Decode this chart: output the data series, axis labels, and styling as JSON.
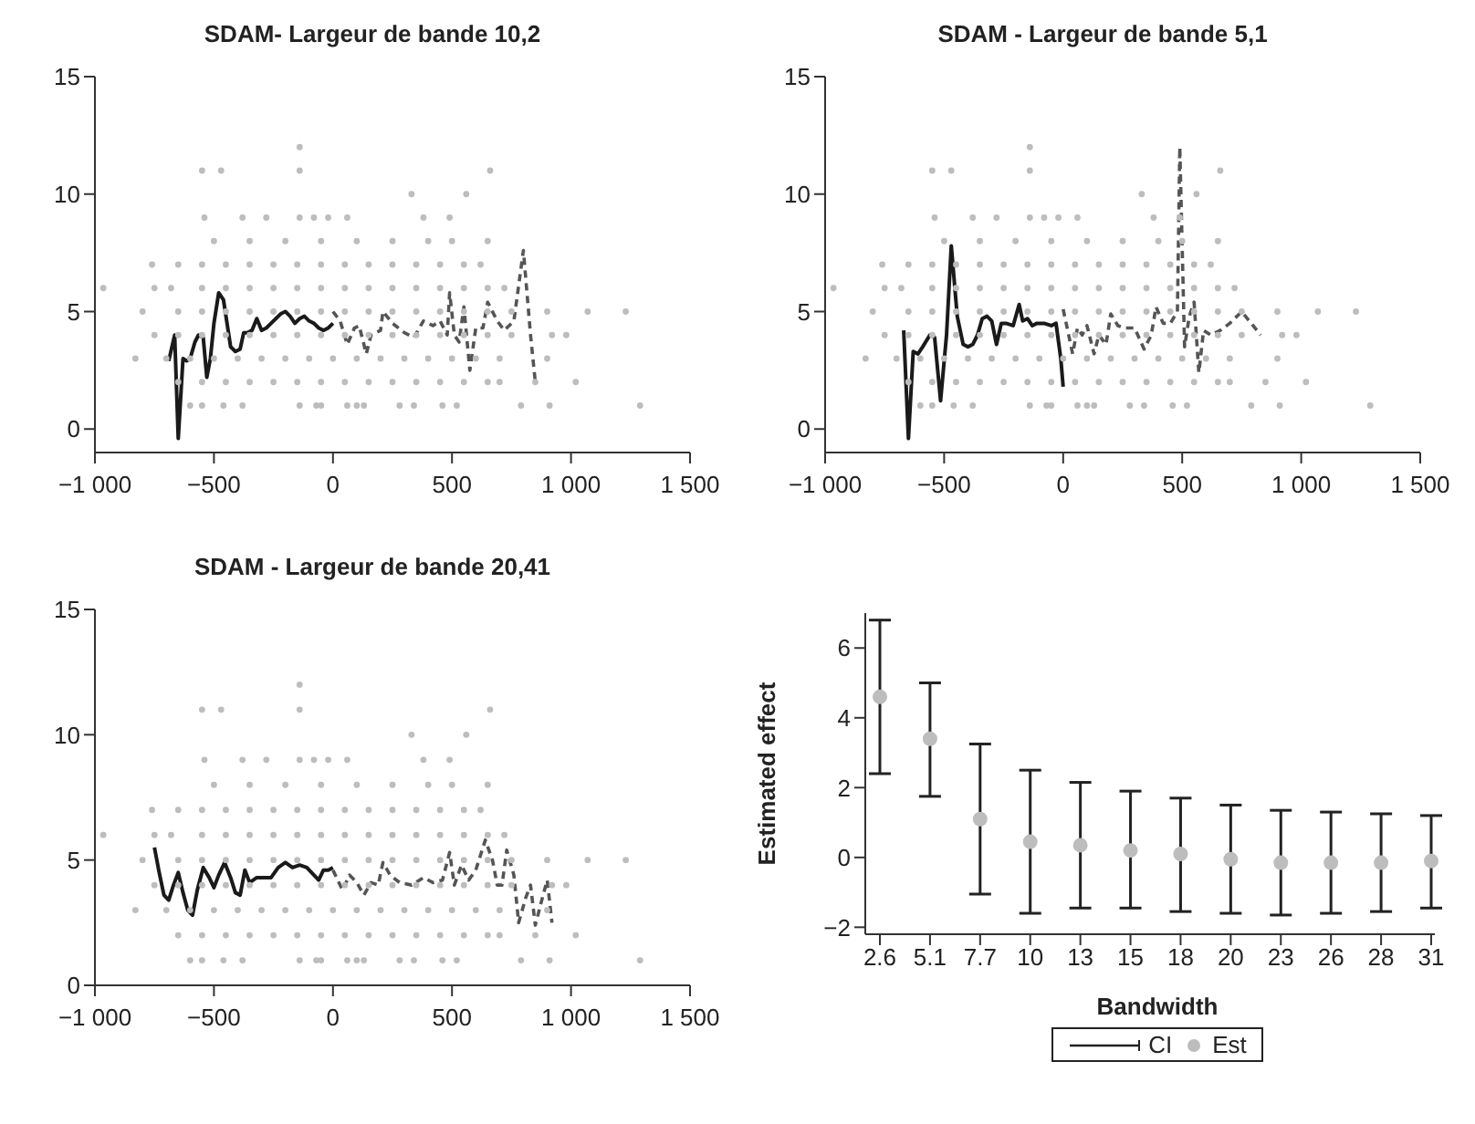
{
  "chart_data": [
    {
      "type": "scatter",
      "title": "SDAM- Largeur de bande 10,2",
      "xlim": [
        -1000,
        1500
      ],
      "xticks": [
        {
          "value": -1000,
          "label": "−1 000"
        },
        {
          "value": -500,
          "label": "−500"
        },
        {
          "value": 0,
          "label": "0"
        },
        {
          "value": 500,
          "label": "500"
        },
        {
          "value": 1000,
          "label": "1 000"
        },
        {
          "value": 1500,
          "label": "1 500"
        }
      ],
      "ylim": [
        -1,
        15
      ],
      "yticks": [
        0,
        5,
        10,
        15
      ],
      "grid": false,
      "legend": false,
      "series": [
        {
          "type": "scatter",
          "color": "#bdbdbd",
          "marker": "circle",
          "x": [
            -600,
            -550,
            -460,
            -380,
            -140,
            -70,
            -50,
            60,
            100,
            130,
            280,
            340,
            460,
            520,
            790,
            910,
            1290,
            -650,
            -550,
            -450,
            -350,
            -250,
            -150,
            -50,
            50,
            150,
            250,
            350,
            450,
            550,
            650,
            700,
            850,
            1020,
            -830,
            -700,
            -600,
            -500,
            -400,
            -300,
            -200,
            -100,
            0,
            100,
            200,
            300,
            400,
            500,
            600,
            700,
            900,
            -750,
            -650,
            -550,
            -450,
            -350,
            -250,
            -150,
            -50,
            50,
            150,
            250,
            350,
            450,
            550,
            650,
            750,
            920,
            980,
            -800,
            -650,
            -550,
            -450,
            -350,
            -250,
            -150,
            -50,
            50,
            150,
            250,
            350,
            450,
            550,
            650,
            750,
            900,
            1070,
            1230,
            -965,
            -750,
            -680,
            -550,
            -450,
            -350,
            -250,
            -150,
            -50,
            50,
            150,
            250,
            350,
            450,
            550,
            650,
            720,
            -760,
            -650,
            -550,
            -450,
            -350,
            -250,
            -150,
            -50,
            50,
            150,
            250,
            350,
            450,
            550,
            620,
            -500,
            -350,
            -200,
            -50,
            100,
            250,
            400,
            500,
            650,
            -540,
            -380,
            -280,
            -140,
            -80,
            -20,
            60,
            380,
            490,
            330,
            560,
            -550,
            -470,
            -140,
            660,
            -140
          ],
          "values": [
            1,
            1,
            1,
            1,
            1,
            1,
            1,
            1,
            1,
            1,
            1,
            1,
            1,
            1,
            1,
            1,
            1,
            2,
            2,
            2,
            2,
            2,
            2,
            2,
            2,
            2,
            2,
            2,
            2,
            2,
            2,
            2,
            2,
            2,
            3,
            3,
            3,
            3,
            3,
            3,
            3,
            3,
            3,
            3,
            3,
            3,
            3,
            3,
            3,
            3,
            3,
            4,
            4,
            4,
            4,
            4,
            4,
            4,
            4,
            4,
            4,
            4,
            4,
            4,
            4,
            4,
            4,
            4,
            4,
            5,
            5,
            5,
            5,
            5,
            5,
            5,
            5,
            5,
            5,
            5,
            5,
            5,
            5,
            5,
            5,
            5,
            5,
            5,
            6,
            6,
            6,
            6,
            6,
            6,
            6,
            6,
            6,
            6,
            6,
            6,
            6,
            6,
            6,
            6,
            6,
            7,
            7,
            7,
            7,
            7,
            7,
            7,
            7,
            7,
            7,
            7,
            7,
            7,
            7,
            7,
            8,
            8,
            8,
            8,
            8,
            8,
            8,
            8,
            8,
            9,
            9,
            9,
            9,
            9,
            9,
            9,
            9,
            9,
            10,
            10,
            11,
            11,
            11,
            11,
            12
          ]
        },
        {
          "type": "line",
          "color": "#1a1a1a",
          "line_style": "solid",
          "marker": "none",
          "x": [
            -690,
            -665,
            -650,
            -630,
            -615,
            -600,
            -580,
            -565,
            -545,
            -530,
            -515,
            -500,
            -480,
            -460,
            -445,
            -430,
            -410,
            -390,
            -375,
            -360,
            -340,
            -320,
            -300,
            -280,
            -260,
            -240,
            -220,
            -200,
            -180,
            -160,
            -140,
            -120,
            -100,
            -80,
            -60,
            -40,
            -20,
            0
          ],
          "values": [
            2.9,
            4.0,
            -0.4,
            3.0,
            2.9,
            3.0,
            3.7,
            4.0,
            3.9,
            2.2,
            3.0,
            4.5,
            5.8,
            5.5,
            4.5,
            3.5,
            3.3,
            3.4,
            4.1,
            4.1,
            4.2,
            4.7,
            4.2,
            4.3,
            4.5,
            4.7,
            4.9,
            5.0,
            4.8,
            4.5,
            4.7,
            4.8,
            4.6,
            4.5,
            4.3,
            4.2,
            4.3,
            4.5
          ]
        },
        {
          "type": "line",
          "color": "#555555",
          "line_style": "dashed",
          "marker": "none",
          "x": [
            0,
            30,
            60,
            90,
            110,
            140,
            160,
            200,
            210,
            250,
            300,
            340,
            380,
            420,
            450,
            480,
            490,
            510,
            530,
            550,
            575,
            600,
            630,
            650,
            690,
            720,
            760,
            800,
            830,
            850
          ],
          "values": [
            5.0,
            4.6,
            3.6,
            4.3,
            4.4,
            3.2,
            4.0,
            4.2,
            5.0,
            4.5,
            4.1,
            3.9,
            4.6,
            4.4,
            4.6,
            4.0,
            5.8,
            4.0,
            3.7,
            5.2,
            2.5,
            4.3,
            4.3,
            5.4,
            4.6,
            4.2,
            4.6,
            7.6,
            4.0,
            2.0
          ]
        }
      ]
    },
    {
      "type": "scatter",
      "title": "SDAM - Largeur de bande 5,1",
      "xlim": [
        -1000,
        1500
      ],
      "xticks": [
        {
          "value": -1000,
          "label": "−1 000"
        },
        {
          "value": -500,
          "label": "−500"
        },
        {
          "value": 0,
          "label": "0"
        },
        {
          "value": 500,
          "label": "500"
        },
        {
          "value": 1000,
          "label": "1 000"
        },
        {
          "value": 1500,
          "label": "1 500"
        }
      ],
      "ylim": [
        -1,
        15
      ],
      "yticks": [
        0,
        5,
        10,
        15
      ],
      "grid": false,
      "legend": false,
      "series": [
        {
          "type": "scatter",
          "color": "#bdbdbd",
          "marker": "circle",
          "x": [
            -600,
            -550,
            -460,
            -380,
            -140,
            -70,
            -50,
            60,
            100,
            130,
            280,
            340,
            460,
            520,
            790,
            910,
            1290,
            -650,
            -550,
            -450,
            -350,
            -250,
            -150,
            -50,
            50,
            150,
            250,
            350,
            450,
            550,
            650,
            700,
            850,
            1020,
            -830,
            -700,
            -600,
            -500,
            -400,
            -300,
            -200,
            -100,
            0,
            100,
            200,
            300,
            400,
            500,
            600,
            700,
            900,
            -750,
            -650,
            -550,
            -450,
            -350,
            -250,
            -150,
            -50,
            50,
            150,
            250,
            350,
            450,
            550,
            650,
            750,
            920,
            980,
            -800,
            -650,
            -550,
            -450,
            -350,
            -250,
            -150,
            -50,
            50,
            150,
            250,
            350,
            450,
            550,
            650,
            750,
            900,
            1070,
            1230,
            -965,
            -750,
            -680,
            -550,
            -450,
            -350,
            -250,
            -150,
            -50,
            50,
            150,
            250,
            350,
            450,
            550,
            650,
            720,
            -760,
            -650,
            -550,
            -450,
            -350,
            -250,
            -150,
            -50,
            50,
            150,
            250,
            350,
            450,
            550,
            620,
            -500,
            -350,
            -200,
            -50,
            100,
            250,
            400,
            500,
            650,
            -540,
            -380,
            -280,
            -140,
            -80,
            -20,
            60,
            380,
            490,
            330,
            560,
            -550,
            -470,
            -140,
            660,
            -140
          ],
          "values": [
            1,
            1,
            1,
            1,
            1,
            1,
            1,
            1,
            1,
            1,
            1,
            1,
            1,
            1,
            1,
            1,
            1,
            2,
            2,
            2,
            2,
            2,
            2,
            2,
            2,
            2,
            2,
            2,
            2,
            2,
            2,
            2,
            2,
            2,
            3,
            3,
            3,
            3,
            3,
            3,
            3,
            3,
            3,
            3,
            3,
            3,
            3,
            3,
            3,
            3,
            3,
            4,
            4,
            4,
            4,
            4,
            4,
            4,
            4,
            4,
            4,
            4,
            4,
            4,
            4,
            4,
            4,
            4,
            4,
            5,
            5,
            5,
            5,
            5,
            5,
            5,
            5,
            5,
            5,
            5,
            5,
            5,
            5,
            5,
            5,
            5,
            5,
            5,
            6,
            6,
            6,
            6,
            6,
            6,
            6,
            6,
            6,
            6,
            6,
            6,
            6,
            6,
            6,
            6,
            6,
            7,
            7,
            7,
            7,
            7,
            7,
            7,
            7,
            7,
            7,
            7,
            7,
            7,
            7,
            7,
            8,
            8,
            8,
            8,
            8,
            8,
            8,
            8,
            8,
            9,
            9,
            9,
            9,
            9,
            9,
            9,
            9,
            9,
            10,
            10,
            11,
            11,
            11,
            11,
            12
          ]
        },
        {
          "type": "line",
          "color": "#1a1a1a",
          "line_style": "solid",
          "marker": "none",
          "x": [
            -670,
            -650,
            -630,
            -610,
            -590,
            -560,
            -540,
            -515,
            -490,
            -470,
            -445,
            -420,
            -400,
            -380,
            -360,
            -340,
            -320,
            -300,
            -280,
            -260,
            -240,
            -210,
            -185,
            -170,
            -150,
            -130,
            -110,
            -80,
            -50,
            -30,
            -10,
            0
          ],
          "values": [
            4.2,
            -0.4,
            3.3,
            3.2,
            3.5,
            4.0,
            3.9,
            1.2,
            4.0,
            7.8,
            4.8,
            3.6,
            3.5,
            3.6,
            4.0,
            4.7,
            4.8,
            4.6,
            3.6,
            4.5,
            4.5,
            4.4,
            5.3,
            4.6,
            4.7,
            4.4,
            4.5,
            4.5,
            4.4,
            4.5,
            3.0,
            1.8
          ]
        },
        {
          "type": "line",
          "color": "#555555",
          "line_style": "dashed",
          "marker": "none",
          "x": [
            0,
            40,
            60,
            80,
            100,
            130,
            150,
            180,
            200,
            230,
            260,
            300,
            340,
            370,
            390,
            420,
            450,
            480,
            490,
            510,
            530,
            550,
            570,
            590,
            620,
            660,
            700,
            750,
            790,
            830
          ],
          "values": [
            5.1,
            3.2,
            4.3,
            4.0,
            4.4,
            3.2,
            4.0,
            3.6,
            4.9,
            4.4,
            4.3,
            4.3,
            3.4,
            4.0,
            5.2,
            4.5,
            4.5,
            5.0,
            12.0,
            3.5,
            4.8,
            5.4,
            2.4,
            4.2,
            4.0,
            4.2,
            4.5,
            5.0,
            4.5,
            4.0
          ]
        }
      ]
    },
    {
      "type": "scatter",
      "title": "SDAM - Largeur de bande 20,41",
      "xlim": [
        -1000,
        1500
      ],
      "xticks": [
        {
          "value": -1000,
          "label": "−1 000"
        },
        {
          "value": -500,
          "label": "−500"
        },
        {
          "value": 0,
          "label": "0"
        },
        {
          "value": 500,
          "label": "500"
        },
        {
          "value": 1000,
          "label": "1 000"
        },
        {
          "value": 1500,
          "label": "1 500"
        }
      ],
      "ylim": [
        0,
        15
      ],
      "yticks": [
        0,
        5,
        10,
        15
      ],
      "grid": false,
      "legend": false,
      "series": [
        {
          "type": "scatter",
          "color": "#bdbdbd",
          "marker": "circle",
          "x": [
            -600,
            -550,
            -460,
            -380,
            -140,
            -70,
            -50,
            60,
            100,
            130,
            280,
            340,
            460,
            520,
            790,
            910,
            1290,
            -650,
            -550,
            -450,
            -350,
            -250,
            -150,
            -50,
            50,
            150,
            250,
            350,
            450,
            550,
            650,
            700,
            850,
            1020,
            -830,
            -700,
            -600,
            -500,
            -400,
            -300,
            -200,
            -100,
            0,
            100,
            200,
            300,
            400,
            500,
            600,
            700,
            900,
            -750,
            -650,
            -550,
            -450,
            -350,
            -250,
            -150,
            -50,
            50,
            150,
            250,
            350,
            450,
            550,
            650,
            750,
            920,
            980,
            -800,
            -650,
            -550,
            -450,
            -350,
            -250,
            -150,
            -50,
            50,
            150,
            250,
            350,
            450,
            550,
            650,
            750,
            900,
            1070,
            1230,
            -965,
            -750,
            -680,
            -550,
            -450,
            -350,
            -250,
            -150,
            -50,
            50,
            150,
            250,
            350,
            450,
            550,
            650,
            720,
            -760,
            -650,
            -550,
            -450,
            -350,
            -250,
            -150,
            -50,
            50,
            150,
            250,
            350,
            450,
            550,
            620,
            -500,
            -350,
            -200,
            -50,
            100,
            250,
            400,
            500,
            650,
            -540,
            -380,
            -280,
            -140,
            -80,
            -20,
            60,
            380,
            490,
            330,
            560,
            -550,
            -470,
            -140,
            660,
            -140
          ],
          "values": [
            1,
            1,
            1,
            1,
            1,
            1,
            1,
            1,
            1,
            1,
            1,
            1,
            1,
            1,
            1,
            1,
            1,
            2,
            2,
            2,
            2,
            2,
            2,
            2,
            2,
            2,
            2,
            2,
            2,
            2,
            2,
            2,
            2,
            2,
            3,
            3,
            3,
            3,
            3,
            3,
            3,
            3,
            3,
            3,
            3,
            3,
            3,
            3,
            3,
            3,
            3,
            4,
            4,
            4,
            4,
            4,
            4,
            4,
            4,
            4,
            4,
            4,
            4,
            4,
            4,
            4,
            4,
            4,
            4,
            5,
            5,
            5,
            5,
            5,
            5,
            5,
            5,
            5,
            5,
            5,
            5,
            5,
            5,
            5,
            5,
            5,
            5,
            5,
            6,
            6,
            6,
            6,
            6,
            6,
            6,
            6,
            6,
            6,
            6,
            6,
            6,
            6,
            6,
            6,
            6,
            7,
            7,
            7,
            7,
            7,
            7,
            7,
            7,
            7,
            7,
            7,
            7,
            7,
            7,
            7,
            8,
            8,
            8,
            8,
            8,
            8,
            8,
            8,
            8,
            9,
            9,
            9,
            9,
            9,
            9,
            9,
            9,
            9,
            10,
            10,
            11,
            11,
            11,
            11,
            12
          ]
        },
        {
          "type": "line",
          "color": "#1a1a1a",
          "line_style": "solid",
          "marker": "none",
          "x": [
            -750,
            -730,
            -710,
            -690,
            -670,
            -650,
            -630,
            -610,
            -590,
            -570,
            -545,
            -520,
            -500,
            -480,
            -455,
            -430,
            -410,
            -390,
            -370,
            -350,
            -320,
            -290,
            -260,
            -230,
            -200,
            -170,
            -140,
            -110,
            -80,
            -60,
            -40,
            -20,
            0
          ],
          "values": [
            5.5,
            4.5,
            3.6,
            3.4,
            4.0,
            4.5,
            3.7,
            3.0,
            2.8,
            3.8,
            4.7,
            4.3,
            3.9,
            4.4,
            4.9,
            4.3,
            3.7,
            3.6,
            4.6,
            4.1,
            4.3,
            4.3,
            4.3,
            4.7,
            4.9,
            4.7,
            4.8,
            4.7,
            4.4,
            4.2,
            4.6,
            4.6,
            4.7
          ]
        },
        {
          "type": "line",
          "color": "#555555",
          "line_style": "dashed",
          "marker": "none",
          "x": [
            0,
            40,
            70,
            100,
            130,
            160,
            190,
            210,
            240,
            280,
            330,
            380,
            420,
            460,
            490,
            510,
            540,
            570,
            600,
            640,
            670,
            690,
            710,
            730,
            760,
            780,
            810,
            830,
            850,
            880,
            900,
            920
          ],
          "values": [
            4.6,
            3.8,
            4.4,
            4.1,
            3.6,
            4.1,
            4.0,
            4.9,
            4.4,
            4.1,
            4.0,
            4.3,
            4.1,
            4.2,
            5.3,
            4.0,
            4.8,
            4.2,
            4.6,
            5.8,
            5.0,
            4.0,
            4.0,
            5.4,
            4.4,
            2.5,
            3.5,
            4.0,
            2.4,
            3.5,
            4.2,
            2.5
          ]
        }
      ]
    },
    {
      "type": "scatter",
      "xlabel": "Bandwidth",
      "ylabel": "Estimated effect",
      "categories": [
        "2.6",
        "5.1",
        "7.7",
        "10",
        "13",
        "15",
        "18",
        "20",
        "23",
        "26",
        "28",
        "31"
      ],
      "ylim": [
        -2.2,
        7
      ],
      "yticks": [
        {
          "value": -2,
          "label": "−2"
        },
        0,
        2,
        4,
        6
      ],
      "grid": false,
      "legend": "bottom",
      "annotations": [
        "CI"
      ],
      "series": [
        {
          "name": "Est",
          "color": "#bdbdbd",
          "marker": "circle",
          "values": [
            4.6,
            3.4,
            1.1,
            0.45,
            0.35,
            0.2,
            0.1,
            -0.05,
            -0.15,
            -0.15,
            -0.15,
            -0.1
          ],
          "errors": [
            [
              2.4,
              6.8
            ],
            [
              1.75,
              5.0
            ],
            [
              -1.05,
              3.25
            ],
            [
              -1.6,
              2.5
            ],
            [
              -1.45,
              2.15
            ],
            [
              -1.45,
              1.9
            ],
            [
              -1.55,
              1.7
            ],
            [
              -1.6,
              1.5
            ],
            [
              -1.65,
              1.35
            ],
            [
              -1.6,
              1.3
            ],
            [
              -1.55,
              1.25
            ],
            [
              -1.45,
              1.2
            ]
          ]
        }
      ]
    }
  ]
}
